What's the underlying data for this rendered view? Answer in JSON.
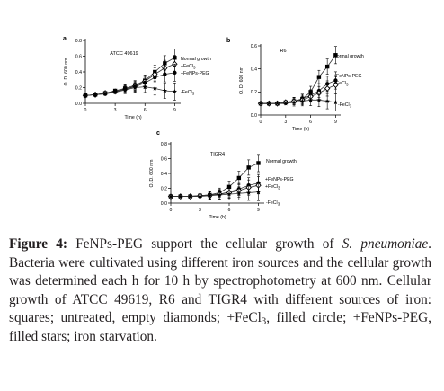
{
  "figure": {
    "colors": {
      "line": "#333333",
      "marker": "#000000"
    },
    "caption": {
      "label": "Figure 4:",
      "part1": " FeNPs-PEG support the cellular growth of ",
      "species": "S. pneumoniae",
      "part2": ". Bacteria were cultivated using different iron sources and the cellular growth was determined each h for 10 h by spectrophotometry at 600 nm. Cellular growth of ATCC 49619, R6 and TIGR4 with different sources of iron: squares; untreated, empty diamonds; +FeCl",
      "sub1": "3",
      "part3": ", filled circle; +FeNPs-PEG, filled stars; iron starvation."
    }
  },
  "chart_data": [
    {
      "type": "line",
      "panel_letter": "a",
      "title": "ATCC 49619",
      "ylabel": "O. D. 600 nm",
      "xlabel": "Time (h)",
      "xlim": [
        0,
        9.6
      ],
      "ylim": [
        0,
        0.8
      ],
      "xticks": [
        0,
        3,
        6,
        9
      ],
      "yticks": [
        0,
        0.2,
        0.4,
        0.6,
        0.8
      ],
      "ytick_labels": [
        "0.0",
        "0.2",
        "0.4",
        "0.6",
        "0.8"
      ],
      "x": [
        0,
        1,
        2,
        3,
        4,
        5,
        6,
        7,
        8,
        9
      ],
      "series": [
        {
          "name": "Normal growth",
          "marker": "square",
          "values": [
            0.1,
            0.11,
            0.13,
            0.16,
            0.19,
            0.23,
            0.29,
            0.4,
            0.51,
            0.58
          ]
        },
        {
          "name": "+FeCl",
          "name_sub": "3",
          "marker": "diamond",
          "values": [
            0.1,
            0.11,
            0.13,
            0.15,
            0.18,
            0.22,
            0.28,
            0.37,
            0.45,
            0.5
          ]
        },
        {
          "name": "+FeNPs-PEG",
          "marker": "circle",
          "values": [
            0.1,
            0.11,
            0.12,
            0.15,
            0.18,
            0.21,
            0.26,
            0.33,
            0.37,
            0.39
          ]
        },
        {
          "name": "-FeCl",
          "name_sub": "3",
          "marker": "star",
          "values": [
            0.1,
            0.11,
            0.12,
            0.14,
            0.17,
            0.2,
            0.21,
            0.19,
            0.16,
            0.15
          ]
        }
      ]
    },
    {
      "type": "line",
      "panel_letter": "b",
      "title": "R6",
      "ylabel": "O. D. 600 nm",
      "xlabel": "Time (h)",
      "xlim": [
        0,
        9.6
      ],
      "ylim": [
        0,
        0.6
      ],
      "xticks": [
        0,
        3,
        6,
        9
      ],
      "yticks": [
        0,
        0.2,
        0.4,
        0.6
      ],
      "ytick_labels": [
        "0.0",
        "0.2",
        "0.4",
        "0.6"
      ],
      "x": [
        0,
        1,
        2,
        3,
        4,
        5,
        6,
        7,
        8,
        9
      ],
      "series": [
        {
          "name": "Normal growth",
          "marker": "square",
          "values": [
            0.1,
            0.1,
            0.1,
            0.11,
            0.12,
            0.14,
            0.2,
            0.33,
            0.42,
            0.52
          ]
        },
        {
          "name": "+FeNPs-PEG",
          "marker": "circle",
          "values": [
            0.1,
            0.1,
            0.1,
            0.11,
            0.12,
            0.14,
            0.17,
            0.21,
            0.27,
            0.3
          ]
        },
        {
          "name": "+FeCl",
          "name_sub": "3",
          "marker": "diamond",
          "values": [
            0.1,
            0.1,
            0.1,
            0.11,
            0.12,
            0.13,
            0.16,
            0.19,
            0.23,
            0.26
          ]
        },
        {
          "name": "-FeCl",
          "name_sub": "3",
          "marker": "star",
          "values": [
            0.1,
            0.1,
            0.1,
            0.1,
            0.11,
            0.12,
            0.13,
            0.13,
            0.12,
            0.11
          ]
        }
      ]
    },
    {
      "type": "line",
      "panel_letter": "c",
      "title": "TIGR4",
      "ylabel": "O. D. 600 nm",
      "xlabel": "Time (h)",
      "xlim": [
        0,
        9.6
      ],
      "ylim": [
        0,
        0.8
      ],
      "xticks": [
        0,
        3,
        6,
        9
      ],
      "yticks": [
        0,
        0.2,
        0.4,
        0.6,
        0.8
      ],
      "ytick_labels": [
        "0.0",
        "0.2",
        "0.4",
        "0.6",
        "0.8"
      ],
      "x": [
        0,
        1,
        2,
        3,
        4,
        5,
        6,
        7,
        8,
        9
      ],
      "series": [
        {
          "name": "Normal growth",
          "marker": "square",
          "values": [
            0.09,
            0.09,
            0.09,
            0.1,
            0.11,
            0.14,
            0.22,
            0.34,
            0.48,
            0.54
          ]
        },
        {
          "name": "+FeNPs-PEG",
          "marker": "circle",
          "values": [
            0.09,
            0.09,
            0.09,
            0.1,
            0.11,
            0.12,
            0.15,
            0.19,
            0.24,
            0.27
          ]
        },
        {
          "name": "+FeCl",
          "name_sub": "3",
          "marker": "diamond",
          "values": [
            0.09,
            0.09,
            0.09,
            0.1,
            0.1,
            0.12,
            0.14,
            0.17,
            0.21,
            0.24
          ]
        },
        {
          "name": "-FeCl",
          "name_sub": "3",
          "marker": "star",
          "values": [
            0.09,
            0.09,
            0.09,
            0.09,
            0.1,
            0.11,
            0.12,
            0.13,
            0.14,
            0.15
          ]
        }
      ]
    }
  ]
}
